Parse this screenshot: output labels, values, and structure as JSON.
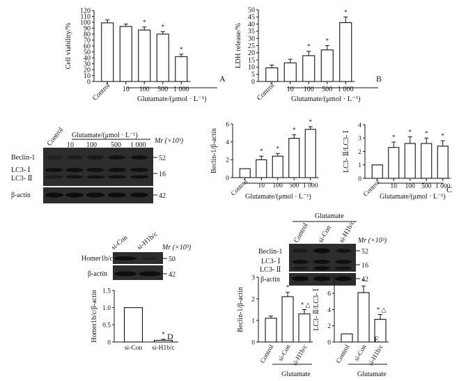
{
  "panel_letters": {
    "A": "A",
    "B": "B",
    "C": "C",
    "D": "D",
    "E": "E"
  },
  "significance_marker": "*",
  "significance_marker_2": "△",
  "chart_data": [
    {
      "id": "A",
      "type": "bar",
      "categories": [
        "Control",
        "10",
        "100",
        "500",
        "1 000"
      ],
      "values": [
        99,
        93,
        87,
        80,
        42
      ],
      "errors": [
        5,
        4,
        5,
        4,
        4
      ],
      "significant": [
        false,
        false,
        true,
        true,
        true
      ],
      "ylabel": "Cell viability/%",
      "ylim": [
        0,
        120
      ],
      "yticks": [
        0,
        10,
        20,
        30,
        40,
        50,
        60,
        70,
        80,
        90,
        100,
        110,
        120
      ],
      "xlabel": "Glutamate/(μmol · L⁻¹)"
    },
    {
      "id": "B",
      "type": "bar",
      "categories": [
        "Control",
        "10",
        "100",
        "500",
        "1 000"
      ],
      "values": [
        9.5,
        13,
        18,
        22,
        41
      ],
      "errors": [
        2,
        2.5,
        3,
        3,
        4
      ],
      "significant": [
        false,
        false,
        true,
        true,
        true
      ],
      "ylabel": "LDH release/%",
      "ylim": [
        0,
        50
      ],
      "yticks": [
        0,
        5,
        10,
        15,
        20,
        25,
        30,
        35,
        40,
        45,
        50
      ],
      "xlabel": "Glutamate/(μmol · L⁻¹)"
    },
    {
      "id": "C1",
      "type": "bar",
      "categories": [
        "Control",
        "10",
        "100",
        "500",
        "1 000"
      ],
      "values": [
        1.0,
        2.0,
        2.4,
        4.4,
        5.4
      ],
      "errors": [
        0,
        0.4,
        0.3,
        0.4,
        0.3
      ],
      "significant": [
        false,
        true,
        true,
        true,
        true
      ],
      "ylabel": "Beclin-1/β-actin",
      "ylim": [
        0,
        6
      ],
      "yticks": [
        0,
        2,
        4,
        6
      ],
      "xlabel": "Glutamate/(μmol · L⁻¹)"
    },
    {
      "id": "C2",
      "type": "bar",
      "categories": [
        "Control",
        "10",
        "100",
        "500",
        "1 000"
      ],
      "values": [
        1.0,
        2.3,
        2.6,
        2.6,
        2.4
      ],
      "errors": [
        0,
        0.4,
        0.5,
        0.4,
        0.4
      ],
      "significant": [
        false,
        true,
        true,
        true,
        true
      ],
      "ylabel": "LC3- Ⅱ/LC3- Ⅰ",
      "ylim": [
        0,
        4
      ],
      "yticks": [
        0,
        1,
        2,
        3,
        4
      ],
      "xlabel": "Glutamate/(μmol · L⁻¹)"
    },
    {
      "id": "D",
      "type": "bar",
      "categories": [
        "si-Con",
        "si-H1b/c"
      ],
      "values": [
        1.0,
        0.05
      ],
      "errors": [
        0,
        0.03
      ],
      "significant": [
        false,
        true
      ],
      "ylabel": "Homer1b/c/β-actin",
      "ylim": [
        0,
        1.5
      ],
      "yticks": [
        "0",
        "0.5",
        "1.0",
        "1.5"
      ],
      "xlabel": ""
    },
    {
      "id": "E1",
      "type": "bar",
      "categories": [
        "Control",
        "si-Con",
        "si-H1b/c"
      ],
      "values": [
        1.1,
        2.1,
        1.3
      ],
      "errors": [
        0.1,
        0.2,
        0.2
      ],
      "significant": [
        false,
        true,
        true
      ],
      "significant_2": [
        false,
        false,
        true
      ],
      "ylabel": "Beclin-1/β-actin",
      "ylim": [
        0,
        3
      ],
      "yticks": [
        0,
        1,
        2,
        3
      ],
      "xlabel": "Glutamate"
    },
    {
      "id": "E2",
      "type": "bar",
      "categories": [
        "Control",
        "si-Con",
        "si-H1b/c"
      ],
      "values": [
        1.0,
        6.1,
        2.8
      ],
      "errors": [
        0,
        0.8,
        0.6
      ],
      "significant": [
        false,
        true,
        true
      ],
      "significant_2": [
        false,
        false,
        true
      ],
      "ylabel": "LC3- Ⅱ/LC3- Ⅰ",
      "ylim": [
        0,
        8
      ],
      "yticks": [
        0,
        2,
        4,
        6,
        8
      ],
      "xlabel": "Glutamate"
    }
  ],
  "blot_C": {
    "header": "Glutamate/(μmol · L⁻¹)",
    "lanes": [
      "Control",
      "10",
      "100",
      "500",
      "1 000"
    ],
    "rows": [
      "Beclin-1",
      "LC3- Ⅰ",
      "LC3- Ⅱ",
      "β-actin"
    ],
    "mr_label": "Mr (×10³)",
    "mr_values": [
      "52",
      "16",
      "42"
    ]
  },
  "blot_D": {
    "lanes": [
      "si-Con",
      "si-H1b/c"
    ],
    "rows": [
      "Homer1b/c",
      "β-actin"
    ],
    "mr_label": "Mr (×10³)",
    "mr_values": [
      "50",
      "42"
    ]
  },
  "blot_E": {
    "header": "Glutamate",
    "lanes": [
      "Control",
      "si-Con",
      "si-H1b/c"
    ],
    "rows": [
      "Beclin-1",
      "LC3- Ⅰ",
      "LC3- Ⅱ",
      "β-actin"
    ],
    "mr_label": "Mr (×10³)",
    "mr_values": [
      "52",
      "16",
      "42"
    ]
  }
}
